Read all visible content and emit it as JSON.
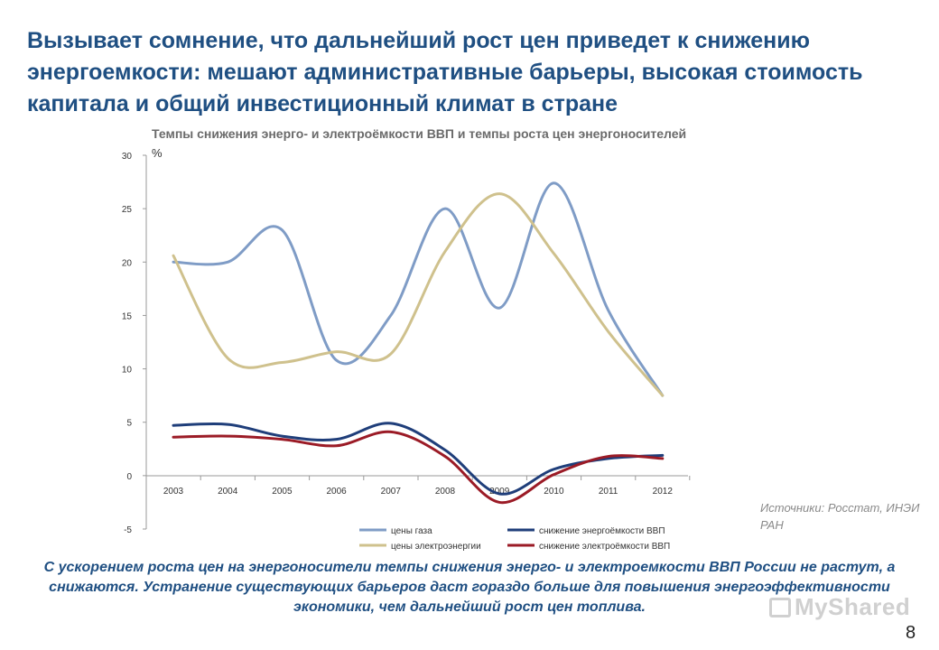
{
  "slide": {
    "title": "Вызывает сомнение, что дальнейший рост цен приведет к снижению\nэнергоемкости: мешают административные барьеры, высокая стоимость\nкапитала и общий инвестиционный климат в стране",
    "sources": "Источники: Росстат, ИНЭИ РАН",
    "conclusion": "С ускорением роста цен на энергоносители темпы снижения энерго- и электроемкости ВВП России не растут, а снижаются. Устранение существующих барьеров даст гораздо больше для повышения энергоэффективности экономики, чем дальнейший рост цен топлива.",
    "page_number": "8",
    "watermark": "MyShared"
  },
  "chart_data": {
    "type": "line",
    "title": "Темпы снижения энерго- и электроёмкости ВВП и темпы роста цен энергоносителей",
    "ylabel": "%",
    "xlabel": "",
    "categories": [
      "2003",
      "2004",
      "2005",
      "2006",
      "2007",
      "2008",
      "2009",
      "2010",
      "2011",
      "2012"
    ],
    "ylim": [
      -5,
      30
    ],
    "yticks": [
      -5,
      0,
      5,
      10,
      15,
      20,
      25,
      30
    ],
    "grid": false,
    "legend_position": "bottom",
    "series": [
      {
        "name": "цены газа",
        "color": "#7f9cc6",
        "values": [
          20.0,
          20.0,
          23.0,
          10.8,
          15.0,
          25.0,
          15.7,
          27.4,
          15.5,
          7.5
        ]
      },
      {
        "name": "цены электроэнергии",
        "color": "#cfc18d",
        "values": [
          20.6,
          11.0,
          10.6,
          11.6,
          11.4,
          21.0,
          26.4,
          20.8,
          13.5,
          7.5
        ]
      },
      {
        "name": "снижение энергоёмкости ВВП",
        "color": "#1f3e7a",
        "values": [
          4.7,
          4.8,
          3.7,
          3.4,
          4.9,
          2.4,
          -1.7,
          0.6,
          1.6,
          1.9
        ]
      },
      {
        "name": "снижение электроёмкости ВВП",
        "color": "#9b1b26",
        "values": [
          3.6,
          3.7,
          3.4,
          2.8,
          4.1,
          1.8,
          -2.5,
          0.1,
          1.8,
          1.6
        ]
      }
    ]
  }
}
